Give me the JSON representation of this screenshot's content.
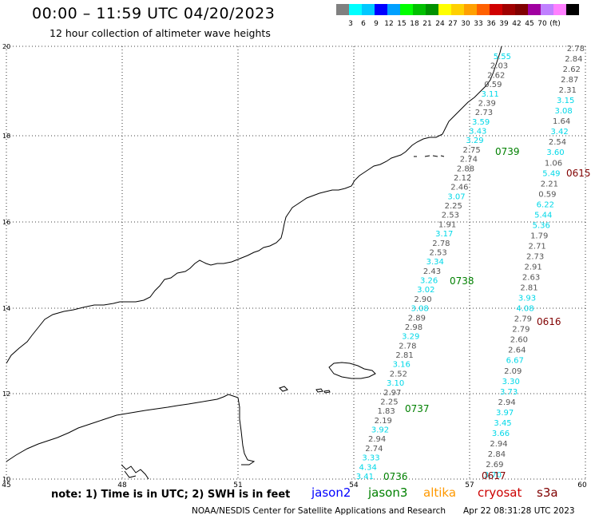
{
  "title": "00:00 – 11:59 UTC 04/20/2023",
  "subtitle": "12 hour collection of altimeter wave heights",
  "color_scale": {
    "colors": [
      "#808080",
      "#00ffff",
      "#00c8ff",
      "#0000ff",
      "#00a0ff",
      "#00ff00",
      "#00c000",
      "#009000",
      "#ffff00",
      "#ffd000",
      "#ffa000",
      "#ff6000",
      "#d00000",
      "#a00000",
      "#800000",
      "#a000a0",
      "#c080ff",
      "#ff80ff",
      "#000000"
    ],
    "labels": [
      "3",
      "6",
      "9",
      "12",
      "15",
      "18",
      "21",
      "24",
      "27",
      "30",
      "33",
      "36",
      "39",
      "42",
      "45",
      "70",
      "(ft)"
    ]
  },
  "axes": {
    "x_ticks": [
      "45",
      "48",
      "51",
      "54",
      "57",
      "60"
    ],
    "y_ticks": [
      "20",
      "18",
      "16",
      "14",
      "12",
      "10"
    ]
  },
  "note": "note: 1) Time is in UTC; 2) SWH is in feet",
  "satellites": [
    {
      "name": "jason2",
      "color": "#0000ff"
    },
    {
      "name": "jason3",
      "color": "#008000"
    },
    {
      "name": "altika",
      "color": "#ff9900"
    },
    {
      "name": "cryosat",
      "color": "#cc0000"
    },
    {
      "name": "s3a",
      "color": "#800000"
    }
  ],
  "credit": "NOAA/NESDIS Center for Satellite Applications and Research",
  "timestamp": "Apr 22 08:31:28 UTC 2023",
  "track_times": [
    {
      "text": "0739",
      "color": "#008000"
    },
    {
      "text": "0738",
      "color": "#008000"
    },
    {
      "text": "0737",
      "color": "#008000"
    },
    {
      "text": "0736",
      "color": "#008000"
    },
    {
      "text": "0615",
      "color": "#800000"
    },
    {
      "text": "0616",
      "color": "#800000"
    },
    {
      "text": "0617",
      "color": "#800000"
    }
  ],
  "track_a_values": [
    {
      "v": "5.55",
      "c": "cyan"
    },
    {
      "v": "2.03",
      "c": "gray"
    },
    {
      "v": "2.62",
      "c": "gray"
    },
    {
      "v": "0.59",
      "c": "gray"
    },
    {
      "v": "3.11",
      "c": "cyan"
    },
    {
      "v": "2.39",
      "c": "gray"
    },
    {
      "v": "2.73",
      "c": "gray"
    },
    {
      "v": "3.59",
      "c": "cyan"
    },
    {
      "v": "3.43",
      "c": "cyan"
    },
    {
      "v": "3.29",
      "c": "cyan"
    },
    {
      "v": "2.75",
      "c": "gray"
    },
    {
      "v": "2.74",
      "c": "gray"
    },
    {
      "v": "2.88",
      "c": "gray"
    },
    {
      "v": "2.12",
      "c": "gray"
    },
    {
      "v": "2.46",
      "c": "gray"
    },
    {
      "v": "3.07",
      "c": "cyan"
    },
    {
      "v": "2.25",
      "c": "gray"
    },
    {
      "v": "2.53",
      "c": "gray"
    },
    {
      "v": "1.91",
      "c": "gray"
    },
    {
      "v": "3.17",
      "c": "cyan"
    },
    {
      "v": "2.78",
      "c": "gray"
    },
    {
      "v": "2.53",
      "c": "gray"
    },
    {
      "v": "3.34",
      "c": "cyan"
    },
    {
      "v": "2.43",
      "c": "gray"
    },
    {
      "v": "3.26",
      "c": "cyan"
    },
    {
      "v": "3.02",
      "c": "cyan"
    },
    {
      "v": "2.90",
      "c": "gray"
    },
    {
      "v": "3.08",
      "c": "cyan"
    },
    {
      "v": "2.89",
      "c": "gray"
    },
    {
      "v": "2.98",
      "c": "gray"
    },
    {
      "v": "3.29",
      "c": "cyan"
    },
    {
      "v": "2.78",
      "c": "gray"
    },
    {
      "v": "2.81",
      "c": "gray"
    },
    {
      "v": "3.16",
      "c": "cyan"
    },
    {
      "v": "2.52",
      "c": "gray"
    },
    {
      "v": "3.10",
      "c": "cyan"
    },
    {
      "v": "2.97",
      "c": "gray"
    },
    {
      "v": "2.25",
      "c": "gray"
    },
    {
      "v": "1.83",
      "c": "gray"
    },
    {
      "v": "2.19",
      "c": "gray"
    },
    {
      "v": "3.92",
      "c": "cyan"
    },
    {
      "v": "2.94",
      "c": "gray"
    },
    {
      "v": "2.74",
      "c": "gray"
    },
    {
      "v": "3.33",
      "c": "cyan"
    },
    {
      "v": "4.34",
      "c": "cyan"
    },
    {
      "v": "3.41",
      "c": "cyan"
    }
  ],
  "track_b_values": [
    {
      "v": "2.78",
      "c": "gray"
    },
    {
      "v": "2.84",
      "c": "gray"
    },
    {
      "v": "2.62",
      "c": "gray"
    },
    {
      "v": "2.87",
      "c": "gray"
    },
    {
      "v": "2.31",
      "c": "gray"
    },
    {
      "v": "3.15",
      "c": "cyan"
    },
    {
      "v": "3.08",
      "c": "cyan"
    },
    {
      "v": "1.64",
      "c": "gray"
    },
    {
      "v": "3.42",
      "c": "cyan"
    },
    {
      "v": "2.54",
      "c": "gray"
    },
    {
      "v": "3.60",
      "c": "cyan"
    },
    {
      "v": "1.06",
      "c": "gray"
    },
    {
      "v": "5.49",
      "c": "cyan"
    },
    {
      "v": "2.21",
      "c": "gray"
    },
    {
      "v": "0.59",
      "c": "gray"
    },
    {
      "v": "6.22",
      "c": "cyan"
    },
    {
      "v": "5.44",
      "c": "cyan"
    },
    {
      "v": "5.36",
      "c": "cyan"
    },
    {
      "v": "1.79",
      "c": "gray"
    },
    {
      "v": "2.71",
      "c": "gray"
    },
    {
      "v": "2.73",
      "c": "gray"
    },
    {
      "v": "2.91",
      "c": "gray"
    },
    {
      "v": "2.63",
      "c": "gray"
    },
    {
      "v": "2.81",
      "c": "gray"
    },
    {
      "v": "3.93",
      "c": "cyan"
    },
    {
      "v": "4.08",
      "c": "cyan"
    },
    {
      "v": "2.79",
      "c": "gray"
    },
    {
      "v": "2.79",
      "c": "gray"
    },
    {
      "v": "2.60",
      "c": "gray"
    },
    {
      "v": "2.64",
      "c": "gray"
    },
    {
      "v": "6.67",
      "c": "cyan"
    },
    {
      "v": "2.09",
      "c": "gray"
    },
    {
      "v": "3.30",
      "c": "cyan"
    },
    {
      "v": "3.73",
      "c": "cyan"
    },
    {
      "v": "2.94",
      "c": "gray"
    },
    {
      "v": "3.97",
      "c": "cyan"
    },
    {
      "v": "3.45",
      "c": "cyan"
    },
    {
      "v": "3.66",
      "c": "cyan"
    },
    {
      "v": "2.94",
      "c": "gray"
    },
    {
      "v": "2.84",
      "c": "gray"
    },
    {
      "v": "2.69",
      "c": "gray"
    },
    {
      "v": "3.70",
      "c": "cyan"
    }
  ]
}
